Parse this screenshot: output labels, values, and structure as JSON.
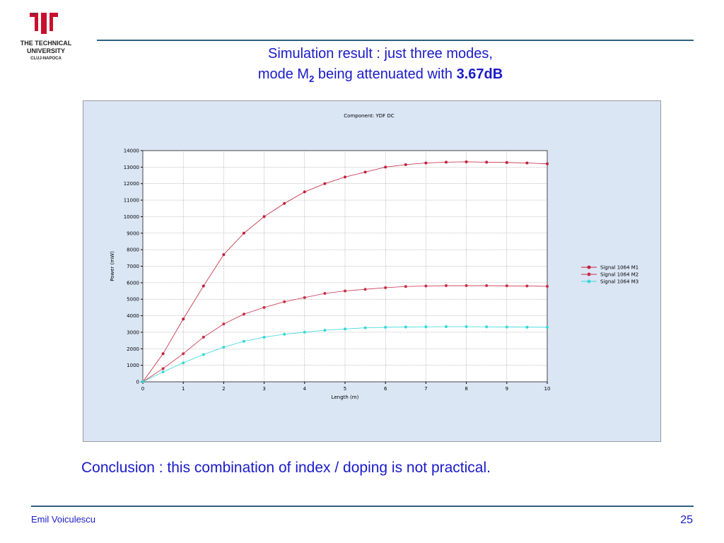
{
  "header": {
    "logo_line1": "THE TECHNICAL",
    "logo_line2": "UNIVERSITY",
    "logo_line3": "CLUJ-NAPOCA",
    "title_line1": "Simulation result : just three modes,",
    "title_line2_a": "mode M",
    "title_line2_sub": "2",
    "title_line2_b": " being attenuated with ",
    "title_line2_bold": "3.67dB"
  },
  "chart_data": {
    "type": "line",
    "title": "Component: YDF DC",
    "xlabel": "Length (m)",
    "ylabel": "Power (mW)",
    "x": [
      0,
      0.5,
      1,
      1.5,
      2,
      2.5,
      3,
      3.5,
      4,
      4.5,
      5,
      5.5,
      6,
      6.5,
      7,
      7.5,
      8,
      8.5,
      9,
      9.5,
      10
    ],
    "series": [
      {
        "name": "Signal 1064 M1",
        "color": "#c0203a",
        "values": [
          0,
          1700,
          3800,
          5800,
          7700,
          9000,
          10000,
          10800,
          11500,
          12000,
          12400,
          12700,
          13000,
          13150,
          13250,
          13300,
          13320,
          13300,
          13280,
          13250,
          13200
        ]
      },
      {
        "name": "Signal 1064 M2",
        "color": "#c83048",
        "values": [
          0,
          800,
          1700,
          2700,
          3500,
          4100,
          4500,
          4850,
          5100,
          5350,
          5500,
          5600,
          5700,
          5770,
          5800,
          5820,
          5820,
          5820,
          5810,
          5800,
          5780
        ]
      },
      {
        "name": "Signal 1064 M3",
        "color": "#38d8d8",
        "values": [
          0,
          600,
          1150,
          1650,
          2100,
          2450,
          2700,
          2880,
          3000,
          3120,
          3200,
          3270,
          3300,
          3320,
          3330,
          3340,
          3340,
          3330,
          3320,
          3310,
          3300
        ]
      }
    ],
    "xlim": [
      0,
      10
    ],
    "xticks": [
      0,
      1,
      2,
      3,
      4,
      5,
      6,
      7,
      8,
      9,
      10
    ],
    "ylim": [
      0,
      14000
    ],
    "yticks": [
      0,
      1000,
      2000,
      3000,
      4000,
      5000,
      6000,
      7000,
      8000,
      9000,
      10000,
      11000,
      12000,
      13000,
      14000
    ],
    "grid": true,
    "legend": "right"
  },
  "conclusion": "Conclusion : this combination of index / doping is not practical.",
  "footer": {
    "author": "Emil Voiculescu",
    "page": "25"
  }
}
